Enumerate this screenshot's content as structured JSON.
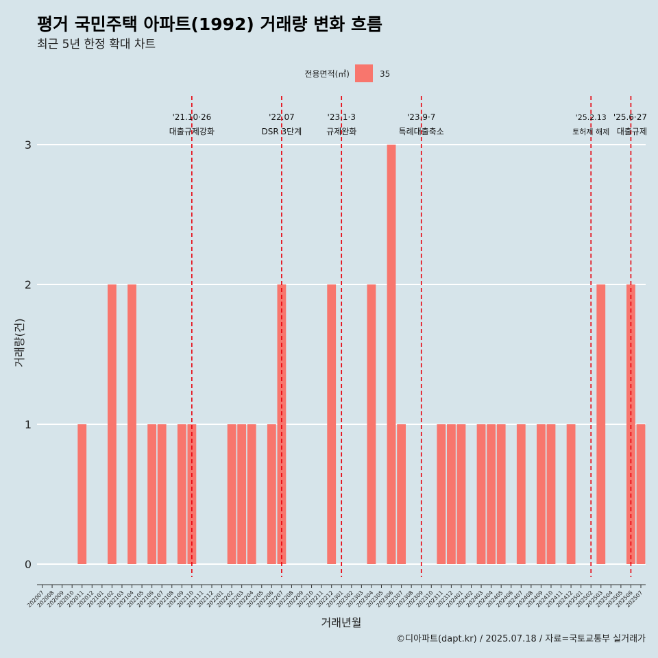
{
  "chart_data": {
    "type": "bar",
    "title": "평거 국민주택 아파트(1992) 거래량 변화 흐름",
    "subtitle": "최근 5년 한정 확대 차트",
    "xlabel": "거래년월",
    "ylabel": "거래량(건)",
    "ylim": [
      0,
      3
    ],
    "yticks": [
      "0",
      "1",
      "2",
      "3"
    ],
    "grid": "horizontal",
    "legend": {
      "title": "전용면적(㎡)",
      "position": "top",
      "entries": [
        {
          "label": "35",
          "color": "#f8766d"
        }
      ]
    },
    "series": [
      {
        "name": "35",
        "color": "#f8766d"
      }
    ],
    "categories": [
      "202007",
      "202008",
      "202009",
      "202010",
      "202011",
      "202012",
      "202101",
      "202102",
      "202103",
      "202104",
      "202105",
      "202106",
      "202107",
      "202108",
      "202109",
      "202110",
      "202111",
      "202112",
      "202201",
      "202202",
      "202203",
      "202204",
      "202205",
      "202206",
      "202207",
      "202208",
      "202209",
      "202210",
      "202211",
      "202212",
      "202301",
      "202302",
      "202303",
      "202304",
      "202305",
      "202306",
      "202307",
      "202308",
      "202309",
      "202310",
      "202311",
      "202312",
      "202401",
      "202402",
      "202403",
      "202404",
      "202405",
      "202406",
      "202407",
      "202408",
      "202409",
      "202410",
      "202411",
      "202412",
      "202501",
      "202502",
      "202503",
      "202504",
      "202505",
      "202506",
      "202507"
    ],
    "values": [
      0,
      0,
      0,
      0,
      1,
      0,
      0,
      2,
      0,
      2,
      0,
      1,
      1,
      0,
      1,
      1,
      0,
      0,
      0,
      1,
      1,
      1,
      0,
      1,
      2,
      0,
      0,
      0,
      0,
      2,
      0,
      0,
      0,
      2,
      0,
      3,
      1,
      0,
      0,
      0,
      1,
      1,
      1,
      0,
      1,
      1,
      1,
      0,
      1,
      0,
      1,
      1,
      0,
      1,
      0,
      0,
      2,
      0,
      0,
      2,
      1
    ],
    "annotations": [
      {
        "category": "202110",
        "line1": "'21.10·26",
        "line2": "대출규제강화"
      },
      {
        "category": "202207",
        "line1": "'22.07",
        "line2": "DSR 3단계"
      },
      {
        "category": "202301",
        "line1": "'23.1·3",
        "line2": "규제완화"
      },
      {
        "category": "202309",
        "line1": "'23.9·7",
        "line2": "특례대출축소"
      },
      {
        "category": "202502",
        "line1": "'25.2.13",
        "line2": "토허제 해제"
      },
      {
        "category": "202506",
        "line1": "'25.6·27",
        "line2": "대출규제"
      }
    ],
    "caption": "©디아파트(dapt.kr) / 2025.07.18 / 자료=국토교통부 실거래가"
  }
}
